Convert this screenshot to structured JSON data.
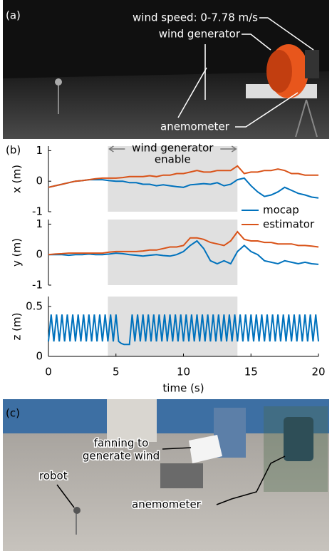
{
  "photo_a": {
    "label": "(a)",
    "annotations": [
      "wind speed: 0-7.78 m/s",
      "wind generator",
      "anemometer"
    ]
  },
  "chart_data": [
    {
      "type": "line",
      "panel_label": "(b)",
      "ylabel": "x (m)",
      "annotation": [
        "wind generator",
        "enable"
      ],
      "shade": [
        4.4,
        14
      ],
      "legend": "lower right",
      "xlim": [
        0,
        20
      ],
      "ylim": [
        -1,
        1.15
      ],
      "yticks": [
        -1,
        0,
        1
      ],
      "x": [
        0,
        0.5,
        1,
        1.5,
        2,
        2.5,
        3,
        3.5,
        4,
        4.5,
        5,
        5.5,
        6,
        6.5,
        7,
        7.5,
        8,
        8.5,
        9,
        9.5,
        10,
        10.5,
        11,
        11.5,
        12,
        12.5,
        13,
        13.5,
        14,
        14.5,
        15,
        15.5,
        16,
        16.5,
        17,
        17.5,
        18,
        18.5,
        19,
        19.5,
        20
      ],
      "series": [
        {
          "name": "mocap",
          "color": "#0072bd",
          "values": [
            -0.2,
            -0.15,
            -0.1,
            -0.05,
            0,
            0.02,
            0.05,
            0.05,
            0.05,
            0.02,
            0,
            0,
            -0.05,
            -0.05,
            -0.1,
            -0.1,
            -0.15,
            -0.12,
            -0.15,
            -0.18,
            -0.2,
            -0.12,
            -0.1,
            -0.08,
            -0.1,
            -0.05,
            -0.15,
            -0.1,
            0.05,
            0.1,
            -0.15,
            -0.35,
            -0.5,
            -0.45,
            -0.35,
            -0.2,
            -0.3,
            -0.4,
            -0.45,
            -0.52,
            -0.55
          ]
        },
        {
          "name": "estimator",
          "color": "#d95319",
          "values": [
            -0.2,
            -0.15,
            -0.1,
            -0.05,
            0,
            0.02,
            0.05,
            0.08,
            0.1,
            0.1,
            0.1,
            0.12,
            0.15,
            0.15,
            0.15,
            0.18,
            0.15,
            0.2,
            0.2,
            0.25,
            0.25,
            0.3,
            0.35,
            0.3,
            0.3,
            0.35,
            0.35,
            0.35,
            0.5,
            0.25,
            0.3,
            0.3,
            0.35,
            0.35,
            0.4,
            0.35,
            0.25,
            0.25,
            0.2,
            0.2,
            0.2
          ]
        }
      ]
    },
    {
      "type": "line",
      "ylabel": "y (m)",
      "shade": [
        4.4,
        14
      ],
      "xlim": [
        0,
        20
      ],
      "ylim": [
        -1,
        1.15
      ],
      "yticks": [
        -1,
        0,
        1
      ],
      "x": [
        0,
        0.5,
        1,
        1.5,
        2,
        2.5,
        3,
        3.5,
        4,
        4.5,
        5,
        5.5,
        6,
        6.5,
        7,
        7.5,
        8,
        8.5,
        9,
        9.5,
        10,
        10.5,
        11,
        11.5,
        12,
        12.5,
        13,
        13.5,
        14,
        14.5,
        15,
        15.5,
        16,
        16.5,
        17,
        17.5,
        18,
        18.5,
        19,
        19.5,
        20
      ],
      "series": [
        {
          "color": "#0072bd",
          "values": [
            0,
            0,
            0,
            -0.02,
            0,
            0,
            0.02,
            0,
            0,
            0.02,
            0.05,
            0.03,
            0,
            -0.02,
            -0.05,
            -0.02,
            0,
            -0.03,
            -0.05,
            0,
            0.1,
            0.3,
            0.45,
            0.2,
            -0.2,
            -0.3,
            -0.2,
            -0.3,
            0.1,
            0.3,
            0.1,
            0,
            -0.2,
            -0.25,
            -0.3,
            -0.2,
            -0.25,
            -0.3,
            -0.25,
            -0.3,
            -0.32
          ]
        },
        {
          "color": "#d95319",
          "values": [
            0,
            0.02,
            0.03,
            0.05,
            0.05,
            0.05,
            0.05,
            0.05,
            0.05,
            0.08,
            0.1,
            0.1,
            0.1,
            0.1,
            0.12,
            0.15,
            0.15,
            0.2,
            0.25,
            0.25,
            0.3,
            0.55,
            0.55,
            0.5,
            0.4,
            0.35,
            0.3,
            0.45,
            0.75,
            0.5,
            0.45,
            0.45,
            0.4,
            0.4,
            0.35,
            0.35,
            0.35,
            0.3,
            0.3,
            0.28,
            0.25
          ]
        }
      ]
    },
    {
      "type": "line",
      "ylabel": "z (m)",
      "xlabel": "time (s)",
      "shade": [
        4.4,
        14
      ],
      "xlim": [
        0,
        20
      ],
      "ylim": [
        0,
        0.6
      ],
      "yticks": [
        0,
        0.5
      ],
      "xticks": [
        0,
        5,
        10,
        15,
        20
      ],
      "x": [
        0,
        0.2,
        0.4,
        0.6,
        0.8,
        1,
        1.2,
        1.4,
        1.6,
        1.8,
        2,
        2.2,
        2.4,
        2.6,
        2.8,
        3,
        3.2,
        3.4,
        3.6,
        3.8,
        4,
        4.2,
        4.4,
        4.6,
        4.8,
        5,
        5.2,
        5.4,
        5.6,
        5.8,
        6,
        6.2,
        6.4,
        6.6,
        6.8,
        7,
        7.2,
        7.4,
        7.6,
        7.8,
        8,
        8.2,
        8.4,
        8.6,
        8.8,
        9,
        9.2,
        9.4,
        9.6,
        9.8,
        10,
        10.2,
        10.4,
        10.6,
        10.8,
        11,
        11.2,
        11.4,
        11.6,
        11.8,
        12,
        12.2,
        12.4,
        12.6,
        12.8,
        13,
        13.2,
        13.4,
        13.6,
        13.8,
        14,
        14.2,
        14.4,
        14.6,
        14.8,
        15,
        15.2,
        15.4,
        15.6,
        15.8,
        16,
        16.2,
        16.4,
        16.6,
        16.8,
        17,
        17.2,
        17.4,
        17.6,
        17.8,
        18,
        18.2,
        18.4,
        18.6,
        18.8,
        19,
        19.2,
        19.4,
        19.6,
        19.8,
        20
      ],
      "series": [
        {
          "color": "#0072bd",
          "values": [
            0.15,
            0.42,
            0.15,
            0.42,
            0.15,
            0.42,
            0.15,
            0.42,
            0.15,
            0.42,
            0.15,
            0.42,
            0.15,
            0.42,
            0.15,
            0.42,
            0.15,
            0.42,
            0.15,
            0.42,
            0.15,
            0.42,
            0.15,
            0.42,
            0.15,
            0.42,
            0.15,
            0.13,
            0.12,
            0.12,
            0.12,
            0.42,
            0.15,
            0.42,
            0.15,
            0.42,
            0.15,
            0.42,
            0.15,
            0.42,
            0.15,
            0.42,
            0.15,
            0.42,
            0.15,
            0.42,
            0.15,
            0.42,
            0.15,
            0.42,
            0.15,
            0.42,
            0.15,
            0.42,
            0.15,
            0.42,
            0.15,
            0.42,
            0.15,
            0.42,
            0.15,
            0.42,
            0.15,
            0.42,
            0.15,
            0.42,
            0.15,
            0.42,
            0.15,
            0.42,
            0.15,
            0.42,
            0.15,
            0.42,
            0.15,
            0.42,
            0.15,
            0.42,
            0.15,
            0.42,
            0.15,
            0.42,
            0.15,
            0.42,
            0.15,
            0.42,
            0.15,
            0.42,
            0.15,
            0.42,
            0.15,
            0.42,
            0.15,
            0.42,
            0.15,
            0.42,
            0.15,
            0.42,
            0.15,
            0.42,
            0.15
          ]
        }
      ]
    }
  ],
  "photo_c": {
    "label": "(c)",
    "annotations": [
      [
        "fanning to",
        "generate wind"
      ],
      "robot",
      "anemometer"
    ]
  }
}
